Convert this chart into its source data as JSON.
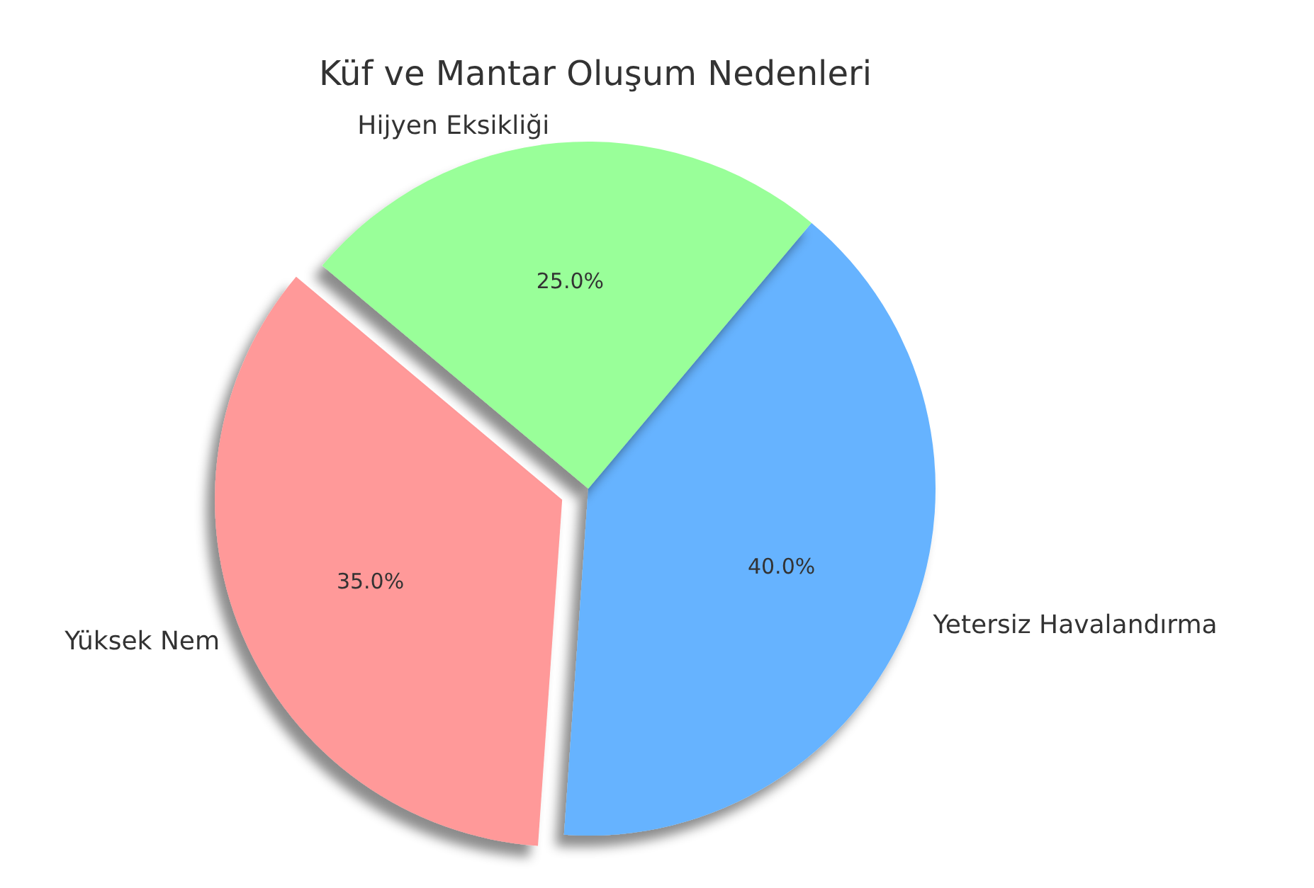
{
  "chart_data": {
    "type": "pie",
    "title": "Küf ve Mantar Oluşum Nedenleri",
    "categories": [
      "Yüksek Nem",
      "Yetersiz Havalandırma",
      "Hijyen Eksikliği"
    ],
    "values": [
      35,
      40,
      25
    ],
    "value_labels": [
      "35.0%",
      "40.0%",
      "25.0%"
    ],
    "colors": [
      "#ff9999",
      "#66b3ff",
      "#99ff99"
    ],
    "legend": false
  }
}
